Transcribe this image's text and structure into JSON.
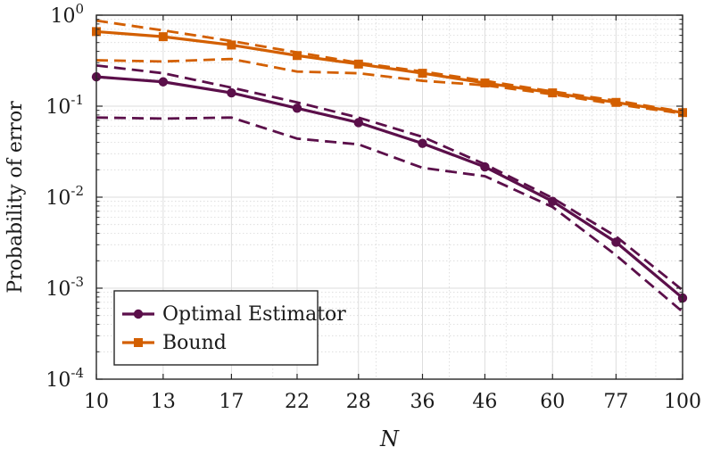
{
  "chart_data": {
    "type": "line",
    "title": "",
    "xlabel": "N",
    "ylabel": "Probability of error",
    "xscale": "log",
    "yscale": "log",
    "x": [
      10,
      13,
      17,
      22,
      28,
      36,
      46,
      60,
      77,
      100
    ],
    "xticks": [
      "10",
      "13",
      "17",
      "22",
      "28",
      "36",
      "46",
      "60",
      "77",
      "100"
    ],
    "yticks": [
      {
        "base": "10",
        "exp": "-4",
        "value": 0.0001
      },
      {
        "base": "10",
        "exp": "-3",
        "value": 0.001
      },
      {
        "base": "10",
        "exp": "-2",
        "value": 0.01
      },
      {
        "base": "10",
        "exp": "-1",
        "value": 0.1
      },
      {
        "base": "10",
        "exp": "0",
        "value": 1
      }
    ],
    "xlim": [
      10,
      100
    ],
    "ylim": [
      0.0001,
      1
    ],
    "grid": true,
    "legend_position": "bottom-left",
    "series": [
      {
        "name": "Optimal Estimator",
        "color": "#5b0f4a",
        "marker": "circle",
        "values": [
          0.21,
          0.185,
          0.14,
          0.095,
          0.066,
          0.039,
          0.0215,
          0.009,
          0.0032,
          0.00078
        ],
        "upper": [
          0.28,
          0.23,
          0.16,
          0.11,
          0.075,
          0.046,
          0.023,
          0.0098,
          0.0037,
          0.00095
        ],
        "lower": [
          0.075,
          0.073,
          0.075,
          0.044,
          0.038,
          0.021,
          0.017,
          0.0078,
          0.0023,
          0.00055
        ]
      },
      {
        "name": "Bound",
        "color": "#d35f00",
        "marker": "square",
        "values": [
          0.66,
          0.58,
          0.47,
          0.36,
          0.29,
          0.23,
          0.18,
          0.14,
          0.11,
          0.085
        ],
        "upper": [
          0.87,
          0.68,
          0.52,
          0.39,
          0.3,
          0.24,
          0.19,
          0.145,
          0.115,
          0.087
        ],
        "lower": [
          0.32,
          0.31,
          0.33,
          0.24,
          0.23,
          0.19,
          0.17,
          0.135,
          0.105,
          0.083
        ]
      }
    ]
  }
}
